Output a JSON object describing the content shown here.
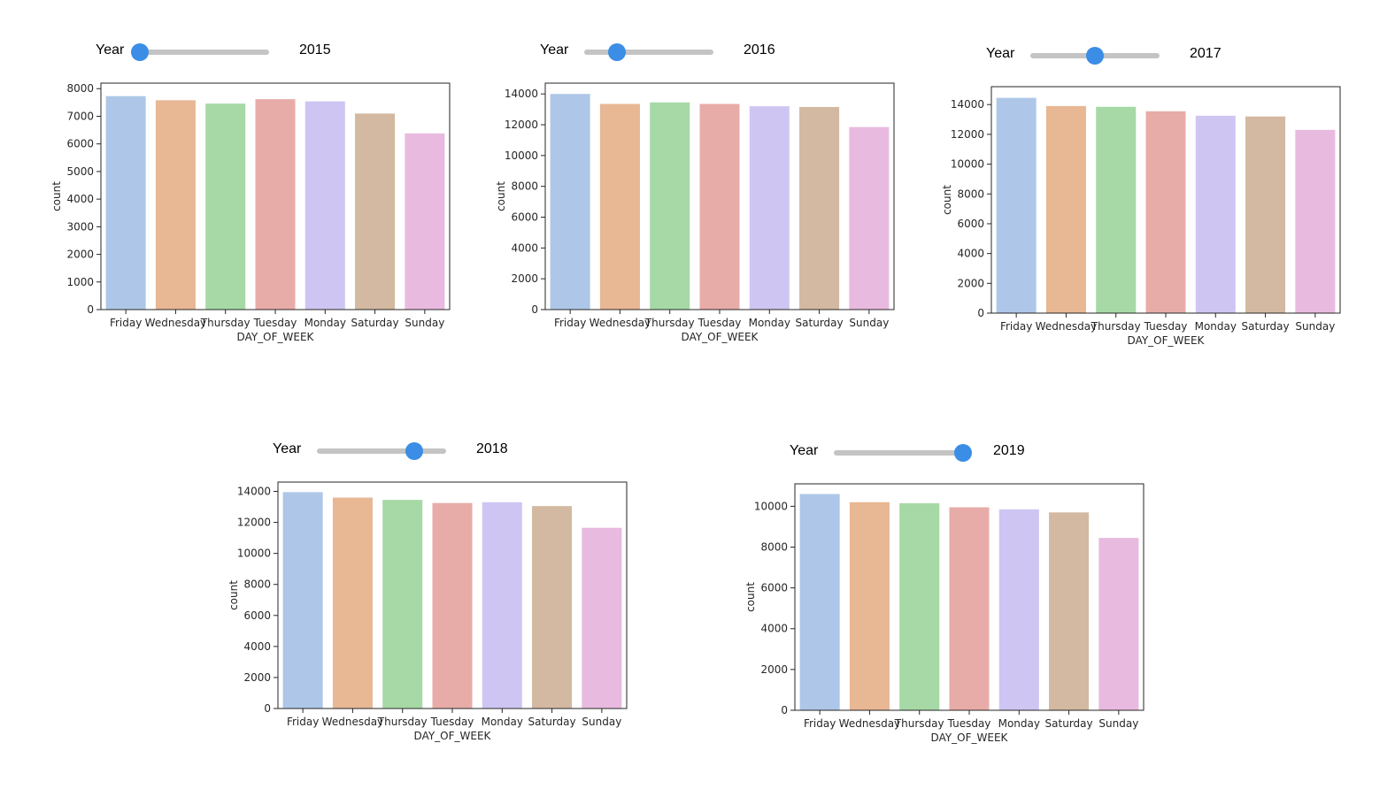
{
  "slider_label": "Year",
  "chart_data": [
    {
      "type": "bar",
      "year": "2015",
      "slider_position": 0.0,
      "categories": [
        "Friday",
        "Wednesday",
        "Thursday",
        "Tuesday",
        "Monday",
        "Saturday",
        "Sunday"
      ],
      "values": [
        7730,
        7580,
        7460,
        7620,
        7540,
        7100,
        6380
      ],
      "xlabel": "DAY_OF_WEEK",
      "ylabel": "count",
      "ylim": [
        0,
        8200
      ],
      "yticks": [
        0,
        1000,
        2000,
        3000,
        4000,
        5000,
        6000,
        7000,
        8000
      ],
      "colors": [
        "#aec7e8",
        "#e8b794",
        "#a6d9a6",
        "#e8aca8",
        "#cfc5f2",
        "#d3b9a1",
        "#e9badf"
      ]
    },
    {
      "type": "bar",
      "year": "2016",
      "slider_position": 0.25,
      "categories": [
        "Friday",
        "Wednesday",
        "Thursday",
        "Tuesday",
        "Monday",
        "Saturday",
        "Sunday"
      ],
      "values": [
        14000,
        13350,
        13450,
        13350,
        13200,
        13150,
        11850
      ],
      "xlabel": "DAY_OF_WEEK",
      "ylabel": "count",
      "ylim": [
        0,
        14700
      ],
      "yticks": [
        0,
        2000,
        4000,
        6000,
        8000,
        10000,
        12000,
        14000
      ],
      "colors": [
        "#aec7e8",
        "#e8b794",
        "#a6d9a6",
        "#e8aca8",
        "#cfc5f2",
        "#d3b9a1",
        "#e9badf"
      ]
    },
    {
      "type": "bar",
      "year": "2017",
      "slider_position": 0.5,
      "categories": [
        "Friday",
        "Wednesday",
        "Thursday",
        "Tuesday",
        "Monday",
        "Saturday",
        "Sunday"
      ],
      "values": [
        14450,
        13900,
        13850,
        13550,
        13250,
        13200,
        12300
      ],
      "xlabel": "DAY_OF_WEEK",
      "ylabel": "count",
      "ylim": [
        0,
        15200
      ],
      "yticks": [
        0,
        2000,
        4000,
        6000,
        8000,
        10000,
        12000,
        14000
      ],
      "colors": [
        "#aec7e8",
        "#e8b794",
        "#a6d9a6",
        "#e8aca8",
        "#cfc5f2",
        "#d3b9a1",
        "#e9badf"
      ]
    },
    {
      "type": "bar",
      "year": "2018",
      "slider_position": 0.75,
      "categories": [
        "Friday",
        "Wednesday",
        "Thursday",
        "Tuesday",
        "Monday",
        "Saturday",
        "Sunday"
      ],
      "values": [
        13950,
        13600,
        13450,
        13250,
        13300,
        13050,
        11650
      ],
      "xlabel": "DAY_OF_WEEK",
      "ylabel": "count",
      "ylim": [
        0,
        14600
      ],
      "yticks": [
        0,
        2000,
        4000,
        6000,
        8000,
        10000,
        12000,
        14000
      ],
      "colors": [
        "#aec7e8",
        "#e8b794",
        "#a6d9a6",
        "#e8aca8",
        "#cfc5f2",
        "#d3b9a1",
        "#e9badf"
      ]
    },
    {
      "type": "bar",
      "year": "2019",
      "slider_position": 1.0,
      "categories": [
        "Friday",
        "Wednesday",
        "Thursday",
        "Tuesday",
        "Monday",
        "Saturday",
        "Sunday"
      ],
      "values": [
        10600,
        10200,
        10150,
        9950,
        9850,
        9700,
        8450
      ],
      "xlabel": "DAY_OF_WEEK",
      "ylabel": "count",
      "ylim": [
        0,
        11100
      ],
      "yticks": [
        0,
        2000,
        4000,
        6000,
        8000,
        10000
      ],
      "colors": [
        "#aec7e8",
        "#e8b794",
        "#a6d9a6",
        "#e8aca8",
        "#cfc5f2",
        "#d3b9a1",
        "#e9badf"
      ]
    }
  ]
}
